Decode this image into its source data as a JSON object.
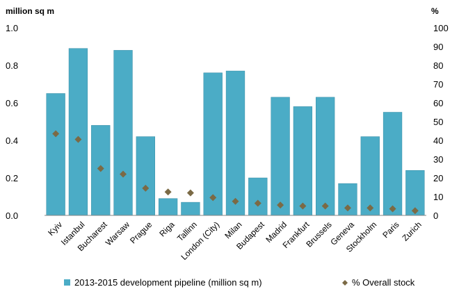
{
  "chart_data": {
    "type": "bar",
    "categories": [
      "Kyiv",
      "Istanbul",
      "Bucharest",
      "Warsaw",
      "Prague",
      "Riga",
      "Tallinn",
      "London (City)",
      "Milan",
      "Budapest",
      "Madrid",
      "Frankfurt",
      "Brussels",
      "Geneva",
      "Stockholm",
      "Paris",
      "Zurich"
    ],
    "series": [
      {
        "name": "2013-2015 development pipeline (million sq m)",
        "type": "bar",
        "axis": "left",
        "color": "#4BACC6",
        "values": [
          0.65,
          0.89,
          0.48,
          0.88,
          0.42,
          0.09,
          0.07,
          0.76,
          0.77,
          0.2,
          0.63,
          0.58,
          0.63,
          0.17,
          0.42,
          0.55,
          0.24
        ]
      },
      {
        "name": "% Overall stock",
        "type": "scatter",
        "marker": "diamond",
        "axis": "right",
        "color": "#7B6A45",
        "values": [
          43.5,
          40.5,
          25,
          22,
          14.5,
          12.5,
          12,
          9.5,
          7.5,
          6.5,
          5.5,
          5,
          5,
          4,
          4,
          3.5,
          2.5
        ]
      }
    ],
    "y_left": {
      "label": "million sq m",
      "ylim": [
        0,
        1.0
      ],
      "ticks": [
        "0.0",
        "0.2",
        "0.4",
        "0.6",
        "0.8",
        "1.0"
      ],
      "tick_values": [
        0,
        0.2,
        0.4,
        0.6,
        0.8,
        1.0
      ]
    },
    "y_right": {
      "label": "%",
      "ylim": [
        0,
        100
      ],
      "ticks": [
        "0",
        "10",
        "20",
        "30",
        "40",
        "50",
        "60",
        "70",
        "80",
        "90",
        "100"
      ],
      "tick_values": [
        0,
        10,
        20,
        30,
        40,
        50,
        60,
        70,
        80,
        90,
        100
      ]
    },
    "grid": false,
    "legend_position": "bottom"
  }
}
